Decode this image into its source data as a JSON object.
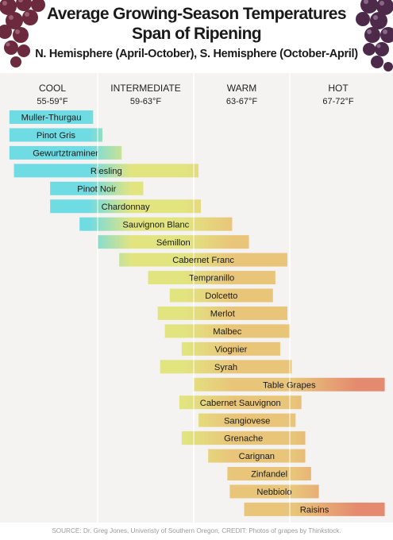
{
  "header": {
    "title_line1": "Average Growing-Season Temperatures",
    "title_line2": "Span of Ripening",
    "subtitle": "N. Hemisphere (April-October), S. Hemisphere (October-April)"
  },
  "source": {
    "prefix": "SOURCE:",
    "text": "Dr. Greg Jones, Univeristy of Southern Oregon, CREDIT: Photos of grapes by Thinkstock."
  },
  "colors": {
    "cool": "#6fdbe3",
    "intermediate": "#e2e480",
    "warm": "#e9c57a",
    "hot": "#e48a6f",
    "background": "#f4f3f1",
    "zone_divider": "#ffffff"
  },
  "chart_data": {
    "type": "bar",
    "orientation": "horizontal-range",
    "x_unit": "°F",
    "xlim": [
      54,
      72
    ],
    "zones": [
      {
        "name": "COOL",
        "range_label": "55-59°F",
        "range": [
          55,
          59
        ]
      },
      {
        "name": "INTERMEDIATE",
        "range_label": "59-63°F",
        "range": [
          59,
          63
        ]
      },
      {
        "name": "WARM",
        "range_label": "63-67°F",
        "range": [
          63,
          67
        ]
      },
      {
        "name": "HOT",
        "range_label": "67-72°F",
        "range": [
          67,
          72
        ]
      }
    ],
    "varieties": [
      {
        "name": "Muller-Thurgau",
        "start": 55.1,
        "end": 58.8
      },
      {
        "name": "Pinot Gris",
        "start": 55.1,
        "end": 59.2
      },
      {
        "name": "Gewurtztraminer",
        "start": 55.1,
        "end": 60.0
      },
      {
        "name": "Riesling",
        "start": 55.3,
        "end": 63.2
      },
      {
        "name": "Pinot Noir",
        "start": 56.9,
        "end": 60.9
      },
      {
        "name": "Chardonnay",
        "start": 56.9,
        "end": 63.3
      },
      {
        "name": "Sauvignon Blanc",
        "start": 58.2,
        "end": 64.6
      },
      {
        "name": "Sémillon",
        "start": 59.0,
        "end": 65.3
      },
      {
        "name": "Cabernet Franc",
        "start": 59.9,
        "end": 66.9
      },
      {
        "name": "Tempranillo",
        "start": 61.1,
        "end": 66.4
      },
      {
        "name": "Dolcetto",
        "start": 62.0,
        "end": 66.3
      },
      {
        "name": "Merlot",
        "start": 61.5,
        "end": 66.9
      },
      {
        "name": "Malbec",
        "start": 61.8,
        "end": 67.0
      },
      {
        "name": "Viognier",
        "start": 62.5,
        "end": 66.6
      },
      {
        "name": "Syrah",
        "start": 61.6,
        "end": 67.1
      },
      {
        "name": "Table Grapes",
        "start": 63.0,
        "end": 71.9
      },
      {
        "name": "Cabernet Sauvignon",
        "start": 62.4,
        "end": 67.6
      },
      {
        "name": "Sangiovese",
        "start": 63.2,
        "end": 67.3
      },
      {
        "name": "Grenache",
        "start": 62.5,
        "end": 67.8
      },
      {
        "name": "Carignan",
        "start": 63.6,
        "end": 67.8
      },
      {
        "name": "Zinfandel",
        "start": 64.4,
        "end": 68.1
      },
      {
        "name": "Nebbiolo",
        "start": 64.5,
        "end": 68.5
      },
      {
        "name": "Raisins",
        "start": 65.1,
        "end": 71.9
      }
    ]
  }
}
